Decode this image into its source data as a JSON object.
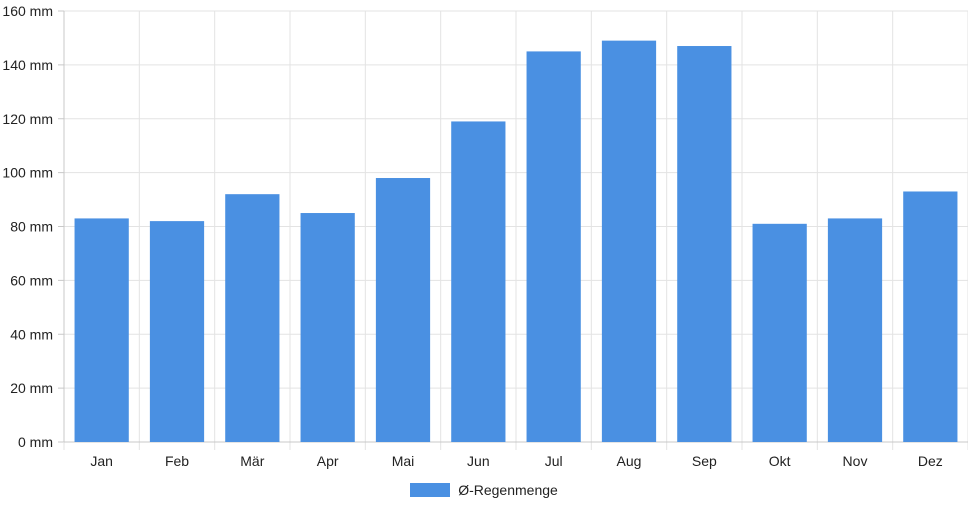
{
  "colors": {
    "bar": "#4a90e2",
    "grid": "#e3e3e3",
    "axis": "#c8c8c8",
    "text": "#222222"
  },
  "chart_data": {
    "type": "bar",
    "title": "",
    "xlabel": "",
    "ylabel": "",
    "unit": "mm",
    "categories": [
      "Jan",
      "Feb",
      "Mär",
      "Apr",
      "Mai",
      "Jun",
      "Jul",
      "Aug",
      "Sep",
      "Okt",
      "Nov",
      "Dez"
    ],
    "series": [
      {
        "name": "Ø-Regenmenge",
        "values": [
          83,
          82,
          92,
          85,
          98,
          119,
          145,
          149,
          147,
          81,
          83,
          93
        ]
      }
    ],
    "ylim": [
      0,
      160
    ],
    "yticks": [
      0,
      20,
      40,
      60,
      80,
      100,
      120,
      140,
      160
    ],
    "ytick_labels": [
      "0 mm",
      "20 mm",
      "40 mm",
      "60 mm",
      "80 mm",
      "100 mm",
      "120 mm",
      "140 mm",
      "160 mm"
    ],
    "grid": true,
    "legend_position": "bottom"
  }
}
